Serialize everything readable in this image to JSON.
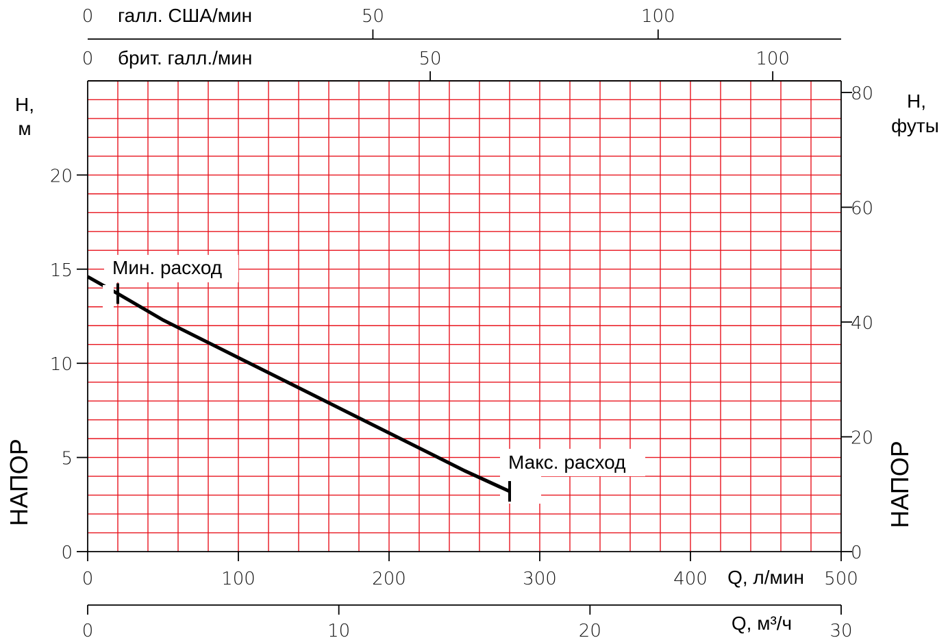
{
  "chart_data": {
    "type": "line",
    "series": [
      {
        "x": [
          0,
          20,
          50,
          100,
          150,
          200,
          250,
          280
        ],
        "y": [
          14.6,
          13.7,
          12.3,
          10.3,
          8.3,
          6.3,
          4.3,
          3.2
        ]
      }
    ],
    "x_primary": {
      "label": "Q, л/мин",
      "range": [
        0,
        500
      ],
      "ticks": [
        0,
        100,
        200,
        300,
        400,
        500
      ]
    },
    "x_m3h": {
      "label": "Q, м³/ч",
      "range": [
        0,
        30
      ],
      "ticks": [
        0,
        10,
        20,
        30
      ]
    },
    "x_us_gpm": {
      "label": "галл. США/мин",
      "zero_label": "0",
      "ticks": [
        50,
        100
      ]
    },
    "x_uk_gpm": {
      "label": "брит. галл./мин",
      "zero_label": "0",
      "ticks": [
        50,
        100
      ]
    },
    "y_left": {
      "label_line1": "H,",
      "label_line2": "м",
      "range": [
        0,
        25
      ],
      "ticks": [
        0,
        5,
        10,
        15,
        20
      ]
    },
    "y_right": {
      "label_line1": "H,",
      "label_line2": "футы",
      "range": [
        0,
        82.02
      ],
      "ticks": [
        0,
        20,
        40,
        60,
        80
      ]
    },
    "side_label": "НАПОР",
    "annotations": [
      {
        "text": "Мин. расход",
        "x": 20,
        "y": 13.7
      },
      {
        "text": "Макс. расход",
        "x": 280,
        "y": 3.2
      }
    ],
    "grid": true,
    "grid_color": "#e8141e",
    "curve_color": "#000000"
  }
}
